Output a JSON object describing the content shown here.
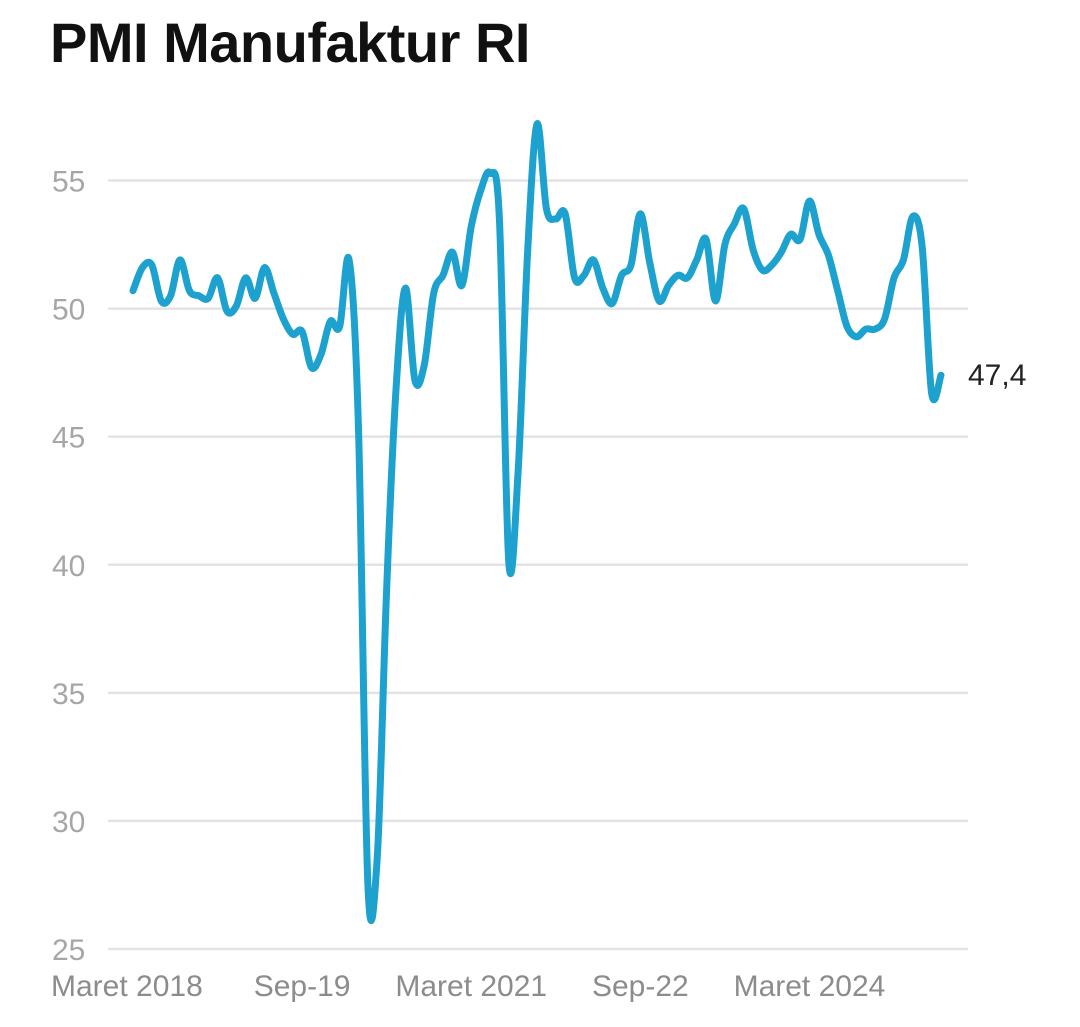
{
  "chart_data": {
    "type": "line",
    "title": "PMI Manufaktur RI",
    "xlabel": "",
    "ylabel": "",
    "ylim": [
      25,
      57.5
    ],
    "y_ticks": [
      25,
      30,
      35,
      40,
      45,
      50,
      55
    ],
    "x_ticks": [
      "Maret 2018",
      "Sep-19",
      "Maret 2021",
      "Sep-22",
      "Maret 2024"
    ],
    "grid": true,
    "line_color": "#1da1cf",
    "last_value_label": "47,4",
    "series": [
      {
        "x": [
          "2018-03",
          "2018-04",
          "2018-05",
          "2018-06",
          "2018-07",
          "2018-08",
          "2018-09",
          "2018-10",
          "2018-11",
          "2018-12",
          "2019-01",
          "2019-02",
          "2019-03",
          "2019-04",
          "2019-05",
          "2019-06",
          "2019-07",
          "2019-08",
          "2019-09",
          "2019-10",
          "2019-11",
          "2019-12",
          "2020-01",
          "2020-02",
          "2020-03",
          "2020-04",
          "2020-05",
          "2020-06",
          "2020-07",
          "2020-08",
          "2020-09",
          "2020-10",
          "2020-11",
          "2020-12",
          "2021-01",
          "2021-02",
          "2021-03",
          "2021-04",
          "2021-05",
          "2021-06",
          "2021-07",
          "2021-08",
          "2021-09",
          "2021-10",
          "2021-11",
          "2021-12",
          "2022-01",
          "2022-02",
          "2022-03",
          "2022-04",
          "2022-05",
          "2022-06",
          "2022-07",
          "2022-08",
          "2022-09",
          "2022-10",
          "2022-11",
          "2022-12",
          "2023-01",
          "2023-02",
          "2023-03",
          "2023-04",
          "2023-05",
          "2023-06",
          "2023-07",
          "2023-08",
          "2023-09",
          "2023-10",
          "2023-11",
          "2023-12",
          "2024-01",
          "2024-02",
          "2024-03",
          "2024-04",
          "2024-05",
          "2024-06",
          "2024-07",
          "2024-08",
          "2024-09",
          "2024-10",
          "2024-11",
          "2024-12",
          "2025-01",
          "2025-02",
          "2025-03",
          "2025-04",
          "2025-05"
        ],
        "values": [
          50.7,
          51.6,
          51.7,
          50.3,
          50.5,
          51.9,
          50.7,
          50.5,
          50.4,
          51.2,
          49.9,
          50.1,
          51.2,
          50.4,
          51.6,
          50.6,
          49.6,
          49.0,
          49.1,
          47.7,
          48.2,
          49.5,
          49.3,
          51.9,
          45.3,
          27.5,
          28.6,
          39.1,
          46.9,
          50.8,
          47.2,
          47.8,
          50.6,
          51.3,
          52.2,
          50.9,
          53.2,
          54.6,
          55.3,
          53.5,
          40.1,
          43.7,
          52.2,
          57.2,
          53.9,
          53.5,
          53.7,
          51.2,
          51.3,
          51.9,
          50.8,
          50.2,
          51.3,
          51.7,
          53.7,
          51.8,
          50.3,
          50.9,
          51.3,
          51.2,
          51.9,
          52.7,
          50.3,
          52.5,
          53.3,
          53.9,
          52.3,
          51.5,
          51.7,
          52.2,
          52.9,
          52.7,
          54.2,
          52.9,
          52.1,
          50.7,
          49.3,
          48.9,
          49.2,
          49.2,
          49.6,
          51.2,
          51.9,
          53.6,
          52.4,
          46.7,
          47.4
        ]
      }
    ]
  }
}
